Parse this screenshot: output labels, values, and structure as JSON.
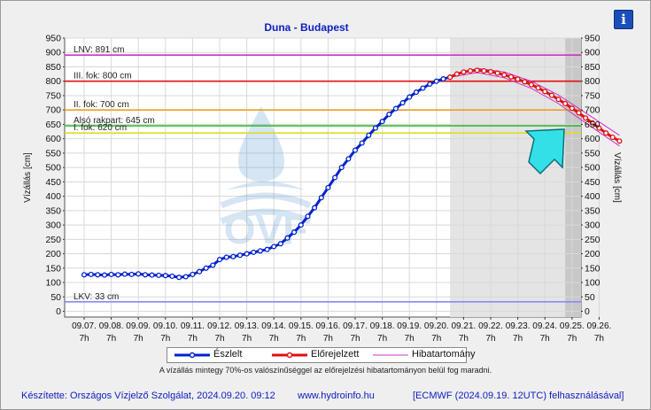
{
  "chart_data": {
    "type": "line",
    "title": "Duna - Budapest",
    "ylabel": "Vízállás [cm]",
    "ylabel_right": "Vízállás [cm]",
    "ylim": [
      -20,
      950
    ],
    "yticks": [
      0,
      50,
      100,
      150,
      200,
      250,
      300,
      350,
      400,
      450,
      500,
      550,
      600,
      650,
      700,
      750,
      800,
      850,
      900,
      950
    ],
    "xlim_day": [
      -0.5,
      19.0
    ],
    "x_ticks": [
      {
        "date": "09.07.",
        "hour": "7h"
      },
      {
        "date": "09.08.",
        "hour": "7h"
      },
      {
        "date": "09.09.",
        "hour": "7h"
      },
      {
        "date": "09.10.",
        "hour": "7h"
      },
      {
        "date": "09.11.",
        "hour": "7h"
      },
      {
        "date": "09.12.",
        "hour": "7h"
      },
      {
        "date": "09.13.",
        "hour": "7h"
      },
      {
        "date": "09.14.",
        "hour": "7h"
      },
      {
        "date": "09.15.",
        "hour": "7h"
      },
      {
        "date": "09.16.",
        "hour": "7h"
      },
      {
        "date": "09.17.",
        "hour": "7h"
      },
      {
        "date": "09.18.",
        "hour": "7h"
      },
      {
        "date": "09.19.",
        "hour": "7h"
      },
      {
        "date": "09.20.",
        "hour": "7h"
      },
      {
        "date": "09.21.",
        "hour": "7h"
      },
      {
        "date": "09.22.",
        "hour": "7h"
      },
      {
        "date": "09.23.",
        "hour": "7h"
      },
      {
        "date": "09.24.",
        "hour": "7h"
      },
      {
        "date": "09.25.",
        "hour": "7h"
      },
      {
        "date": "09.26.",
        "hour": "7h"
      }
    ],
    "reference_lines": [
      {
        "label": "LNV: 891 cm",
        "value": 891,
        "color": "#cc33cc"
      },
      {
        "label": "III. fok: 800 cm",
        "value": 800,
        "color": "#e01010"
      },
      {
        "label": "II. fok: 700 cm",
        "value": 700,
        "color": "#e8a020"
      },
      {
        "label": "Alsó rakpart: 645 cm",
        "value": 645,
        "color": "#33bb33"
      },
      {
        "label": "I. fok: 620 cm",
        "value": 620,
        "color": "#dddd22"
      },
      {
        "label": "LKV: 33 cm",
        "value": 33,
        "color": "#8888ff"
      }
    ],
    "series": [
      {
        "name": "Észlelt",
        "color": "#0022cc",
        "points": [
          [
            0.0,
            127
          ],
          [
            0.25,
            128
          ],
          [
            0.5,
            127
          ],
          [
            0.75,
            126
          ],
          [
            1.0,
            128
          ],
          [
            1.25,
            127
          ],
          [
            1.5,
            129
          ],
          [
            1.75,
            128
          ],
          [
            2.0,
            130
          ],
          [
            2.25,
            127
          ],
          [
            2.5,
            126
          ],
          [
            2.75,
            125
          ],
          [
            3.0,
            124
          ],
          [
            3.25,
            122
          ],
          [
            3.5,
            118
          ],
          [
            3.75,
            120
          ],
          [
            4.0,
            128
          ],
          [
            4.25,
            138
          ],
          [
            4.5,
            150
          ],
          [
            4.75,
            160
          ],
          [
            5.0,
            180
          ],
          [
            5.25,
            188
          ],
          [
            5.5,
            190
          ],
          [
            5.75,
            195
          ],
          [
            6.0,
            200
          ],
          [
            6.25,
            205
          ],
          [
            6.5,
            210
          ],
          [
            6.75,
            215
          ],
          [
            7.0,
            225
          ],
          [
            7.25,
            235
          ],
          [
            7.5,
            255
          ],
          [
            7.75,
            275
          ],
          [
            8.0,
            300
          ],
          [
            8.25,
            330
          ],
          [
            8.5,
            360
          ],
          [
            8.75,
            395
          ],
          [
            9.0,
            430
          ],
          [
            9.25,
            465
          ],
          [
            9.5,
            500
          ],
          [
            9.75,
            530
          ],
          [
            10.0,
            560
          ],
          [
            10.25,
            585
          ],
          [
            10.5,
            612
          ],
          [
            10.75,
            637
          ],
          [
            11.0,
            660
          ],
          [
            11.25,
            685
          ],
          [
            11.5,
            705
          ],
          [
            11.75,
            725
          ],
          [
            12.0,
            745
          ],
          [
            12.25,
            762
          ],
          [
            12.5,
            776
          ],
          [
            12.75,
            790
          ],
          [
            13.0,
            800
          ],
          [
            13.25,
            808
          ],
          [
            13.5,
            814
          ]
        ]
      },
      {
        "name": "Előrejelzett",
        "color": "#dd1111",
        "points": [
          [
            13.5,
            814
          ],
          [
            13.75,
            825
          ],
          [
            14.0,
            832
          ],
          [
            14.25,
            836
          ],
          [
            14.5,
            838
          ],
          [
            14.75,
            836
          ],
          [
            15.0,
            833
          ],
          [
            15.25,
            828
          ],
          [
            15.5,
            822
          ],
          [
            15.75,
            815
          ],
          [
            16.0,
            807
          ],
          [
            16.25,
            798
          ],
          [
            16.5,
            788
          ],
          [
            16.75,
            777
          ],
          [
            17.0,
            764
          ],
          [
            17.25,
            751
          ],
          [
            17.5,
            737
          ],
          [
            17.75,
            722
          ],
          [
            18.0,
            706
          ],
          [
            18.25,
            690
          ],
          [
            18.5,
            672
          ],
          [
            18.75,
            655
          ],
          [
            19.0,
            637
          ],
          [
            19.25,
            620
          ],
          [
            19.5,
            605
          ],
          [
            19.75,
            592
          ]
        ]
      },
      {
        "name": "Hibatartomány",
        "color": "#cc33cc",
        "upper": [
          [
            13.5,
            814
          ],
          [
            14.5,
            845
          ],
          [
            15.5,
            832
          ],
          [
            16.5,
            800
          ],
          [
            17.5,
            752
          ],
          [
            18.5,
            690
          ],
          [
            19.75,
            612
          ]
        ],
        "lower": [
          [
            13.5,
            814
          ],
          [
            14.5,
            830
          ],
          [
            15.5,
            812
          ],
          [
            16.5,
            775
          ],
          [
            17.5,
            722
          ],
          [
            18.5,
            655
          ],
          [
            19.75,
            575
          ]
        ]
      }
    ],
    "legend_position": "bottom",
    "forecast_shading_from_day": 13.5,
    "dark_shading_from_day": 17.75,
    "annotation": "arrow pointing to forecast near 09.25."
  },
  "legend": {
    "observed": "Észlelt",
    "forecast": "Előrejelzett",
    "error_band": "Hibatartomány"
  },
  "note": "A vízállás mintegy 70%-os valószínűséggel az előrejelzési hibatartományon belül fog maradni.",
  "footer": {
    "left": "Készítette: Országos Vízjelző Szolgálat, 2024.09.20. 09:12",
    "middle": "www.hydroinfo.hu",
    "right": "[ECMWF (2024.09.19. 12UTC) felhasználásával]"
  },
  "info_icon": "info-icon",
  "watermark": "OVF"
}
